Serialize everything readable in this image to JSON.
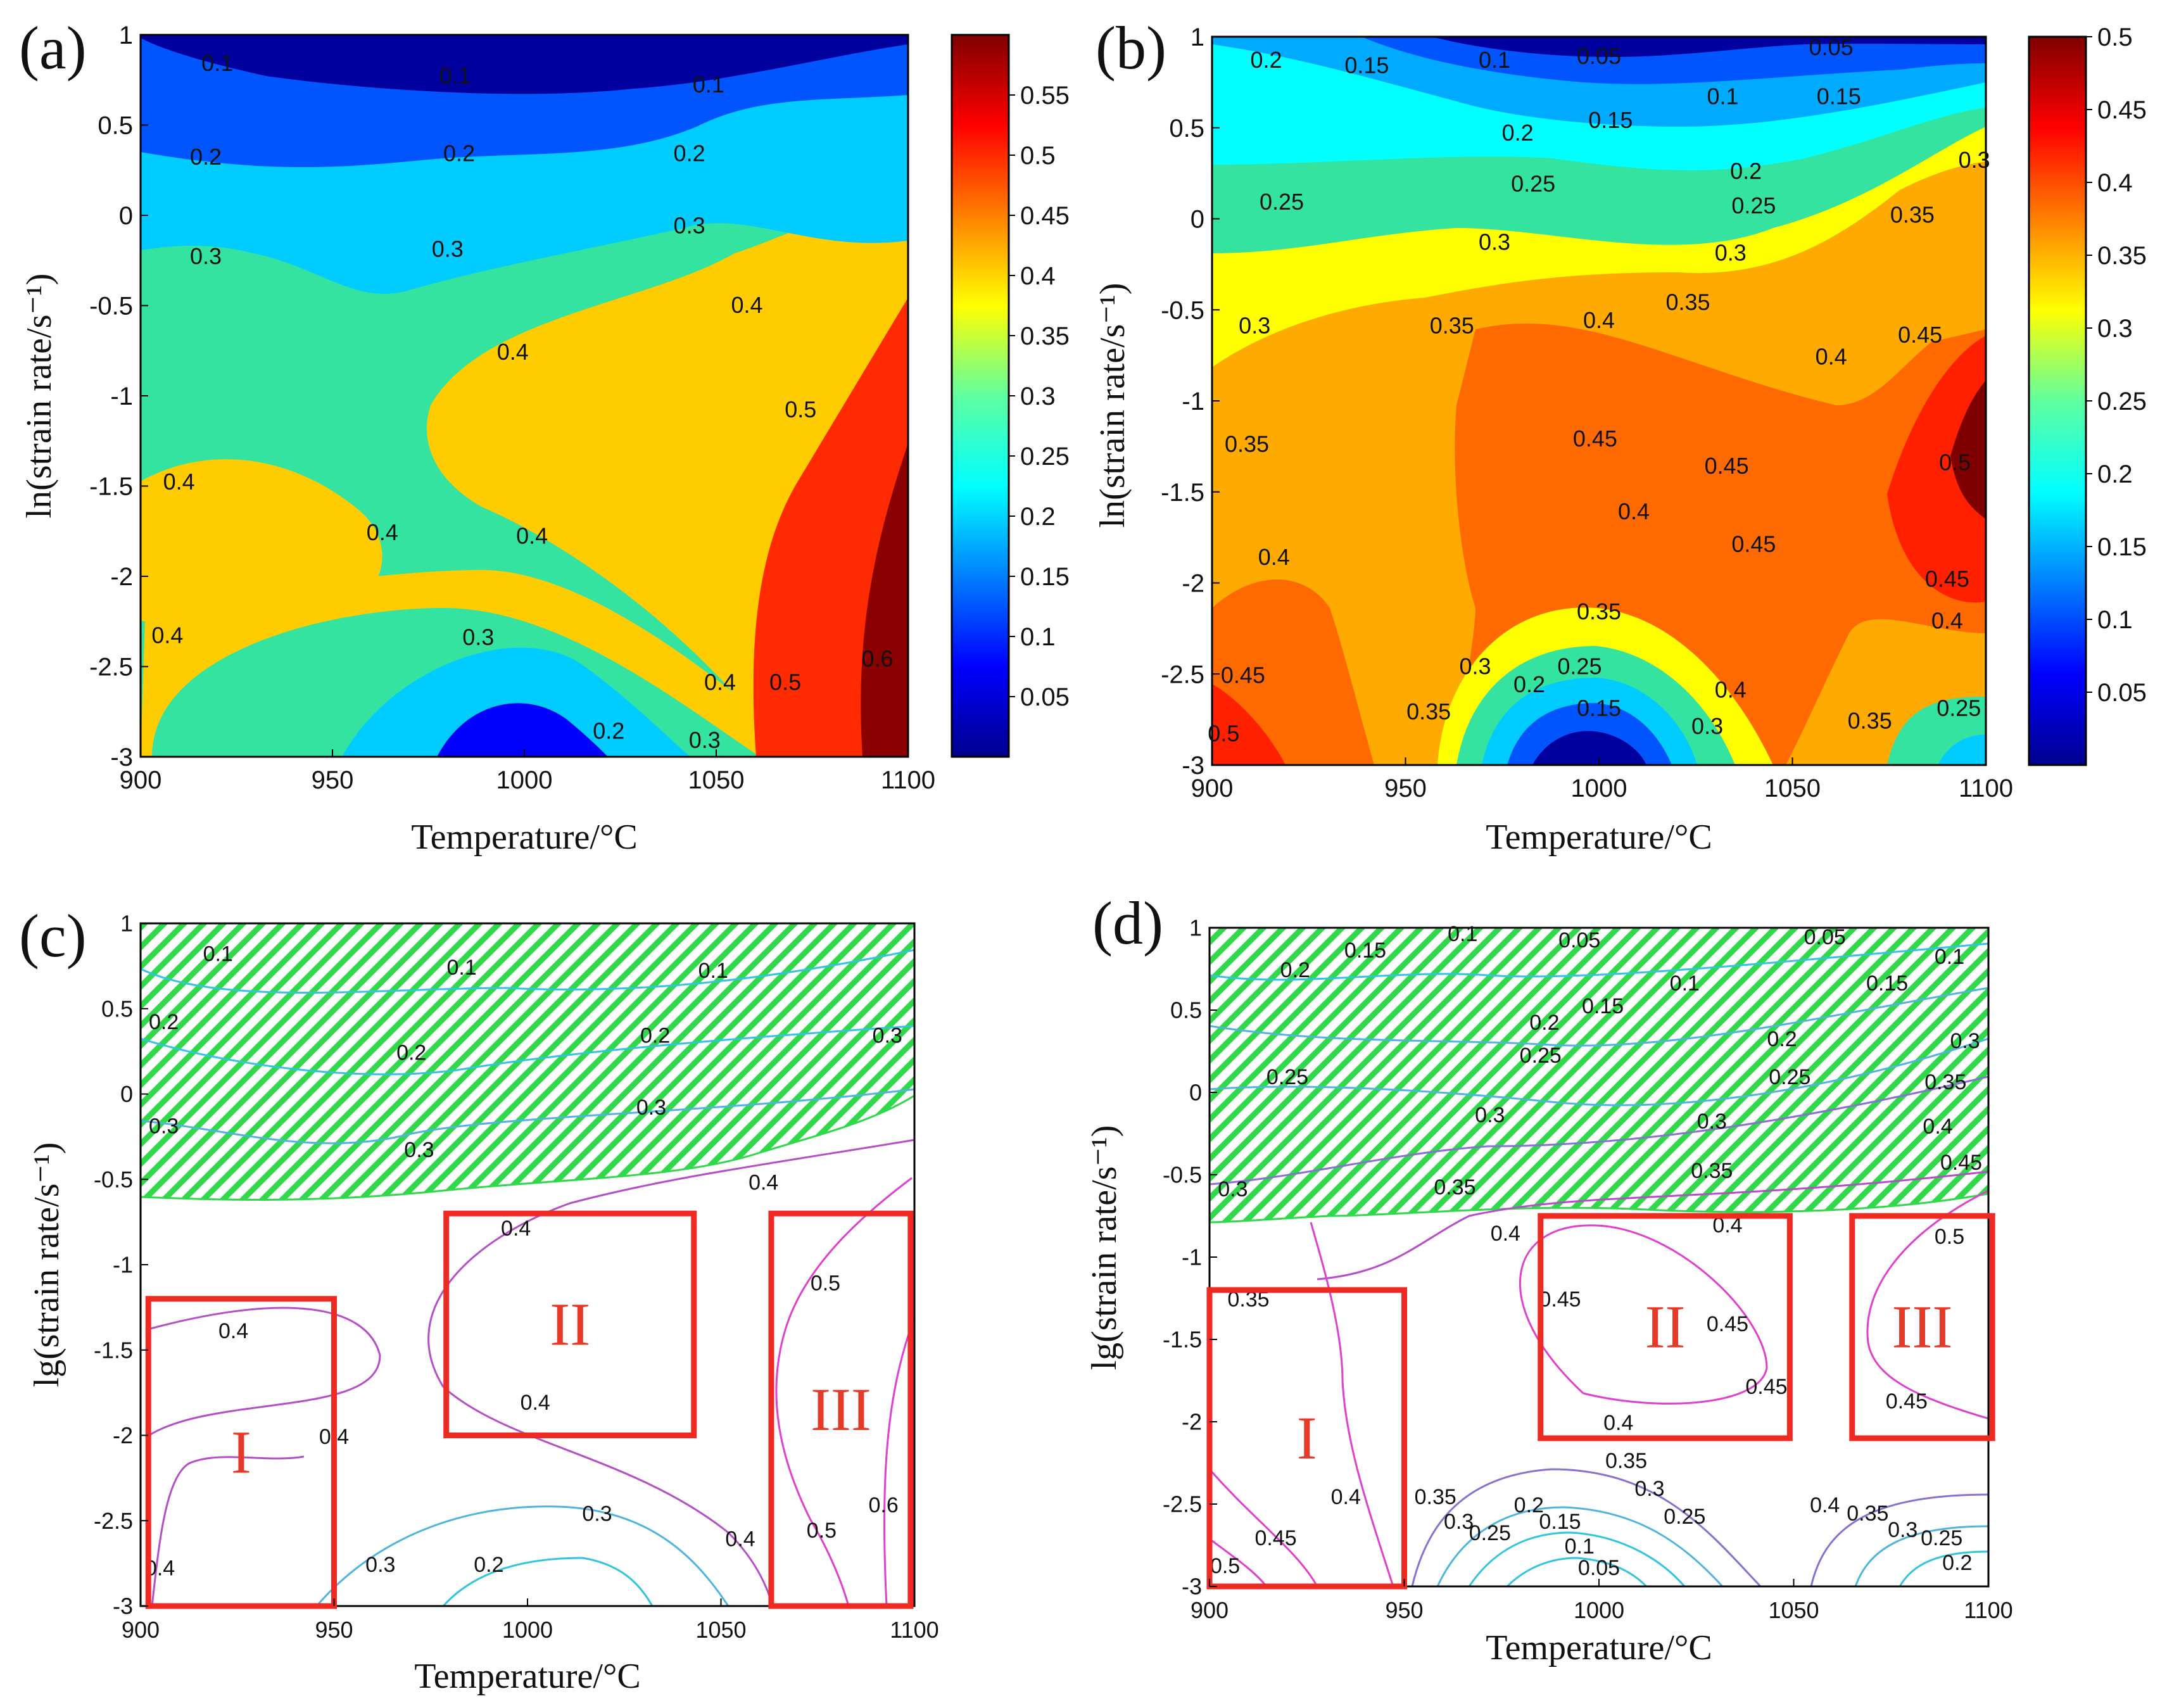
{
  "figure": {
    "panels": [
      {
        "id": "a",
        "letter": "(a)",
        "type": "filled-contour",
        "xlabel": "Temperature/°C",
        "ylabel": "ln(strain rate/s⁻¹)",
        "xlim": [
          900,
          1100
        ],
        "ylim": [
          -3,
          1
        ],
        "xticks": [
          "900",
          "950",
          "1000",
          "1050",
          "1100"
        ],
        "yticks": [
          "1",
          "0.5",
          "0",
          "-0.5",
          "-1",
          "-1.5",
          "-2",
          "-2.5",
          "-3"
        ],
        "colorbar": {
          "ticks": [
            "0.55",
            "0.5",
            "0.45",
            "0.4",
            "0.35",
            "0.3",
            "0.25",
            "0.2",
            "0.15",
            "0.1",
            "0.05"
          ],
          "range": [
            0,
            0.6
          ]
        },
        "contour_labels": [
          {
            "text": "0.1",
            "x": 920,
            "y": 0.8
          },
          {
            "text": "0.1",
            "x": 982,
            "y": 0.73
          },
          {
            "text": "0.1",
            "x": 1048,
            "y": 0.68
          },
          {
            "text": "0.2",
            "x": 917,
            "y": 0.28
          },
          {
            "text": "0.2",
            "x": 983,
            "y": 0.3
          },
          {
            "text": "0.2",
            "x": 1043,
            "y": 0.3
          },
          {
            "text": "0.3",
            "x": 917,
            "y": -0.27
          },
          {
            "text": "0.3",
            "x": 980,
            "y": -0.23
          },
          {
            "text": "0.3",
            "x": 1043,
            "y": -0.1
          },
          {
            "text": "0.4",
            "x": 1058,
            "y": -0.54
          },
          {
            "text": "0.4",
            "x": 997,
            "y": -0.8
          },
          {
            "text": "0.5",
            "x": 1072,
            "y": -1.12
          },
          {
            "text": "0.4",
            "x": 910,
            "y": -1.52
          },
          {
            "text": "0.4",
            "x": 963,
            "y": -1.8
          },
          {
            "text": "0.4",
            "x": 1002,
            "y": -1.82
          },
          {
            "text": "0.4",
            "x": 907,
            "y": -2.37
          },
          {
            "text": "0.3",
            "x": 988,
            "y": -2.38
          },
          {
            "text": "0.4",
            "x": 1051,
            "y": -2.63
          },
          {
            "text": "0.5",
            "x": 1068,
            "y": -2.63
          },
          {
            "text": "0.6",
            "x": 1092,
            "y": -2.5
          },
          {
            "text": "0.2",
            "x": 1022,
            "y": -2.9
          },
          {
            "text": "0.3",
            "x": 1047,
            "y": -2.95
          }
        ]
      },
      {
        "id": "b",
        "letter": "(b)",
        "type": "filled-contour",
        "xlabel": "Temperature/°C",
        "ylabel": "ln(strain rate/s⁻¹)",
        "xlim": [
          900,
          1100
        ],
        "ylim": [
          -3,
          1
        ],
        "xticks": [
          "900",
          "950",
          "1000",
          "1050",
          "1100"
        ],
        "yticks": [
          "1",
          "0.5",
          "0",
          "-0.5",
          "-1",
          "-1.5",
          "-2",
          "-2.5",
          "-3"
        ],
        "colorbar": {
          "ticks": [
            "0.5",
            "0.45",
            "0.4",
            "0.35",
            "0.3",
            "0.25",
            "0.2",
            "0.15",
            "0.1",
            "0.05"
          ],
          "range": [
            0,
            0.5
          ]
        },
        "contour_labels": [
          {
            "text": "0.2",
            "x": 914,
            "y": 0.83
          },
          {
            "text": "0.15",
            "x": 940,
            "y": 0.8
          },
          {
            "text": "0.1",
            "x": 973,
            "y": 0.83
          },
          {
            "text": "0.05",
            "x": 1000,
            "y": 0.85
          },
          {
            "text": "0.05",
            "x": 1060,
            "y": 0.9
          },
          {
            "text": "0.1",
            "x": 1032,
            "y": 0.63
          },
          {
            "text": "0.15",
            "x": 1062,
            "y": 0.63
          },
          {
            "text": "0.15",
            "x": 1003,
            "y": 0.5
          },
          {
            "text": "0.2",
            "x": 979,
            "y": 0.43
          },
          {
            "text": "0.2",
            "x": 1038,
            "y": 0.22
          },
          {
            "text": "0.25",
            "x": 918,
            "y": 0.05
          },
          {
            "text": "0.25",
            "x": 983,
            "y": 0.15
          },
          {
            "text": "0.25",
            "x": 1040,
            "y": 0.03
          },
          {
            "text": "0.3",
            "x": 1097,
            "y": 0.28
          },
          {
            "text": "0.3",
            "x": 973,
            "y": -0.17
          },
          {
            "text": "0.3",
            "x": 1034,
            "y": -0.23
          },
          {
            "text": "0.35",
            "x": 1081,
            "y": -0.02
          },
          {
            "text": "0.35",
            "x": 962,
            "y": -0.63
          },
          {
            "text": "0.35",
            "x": 1023,
            "y": -0.5
          },
          {
            "text": "0.4",
            "x": 1000,
            "y": -0.6
          },
          {
            "text": "0.4",
            "x": 1060,
            "y": -0.8
          },
          {
            "text": "0.45",
            "x": 1083,
            "y": -0.68
          },
          {
            "text": "0.3",
            "x": 911,
            "y": -0.63
          },
          {
            "text": "0.35",
            "x": 909,
            "y": -1.28
          },
          {
            "text": "0.45",
            "x": 999,
            "y": -1.25
          },
          {
            "text": "0.45",
            "x": 1033,
            "y": -1.4
          },
          {
            "text": "0.4",
            "x": 1009,
            "y": -1.65
          },
          {
            "text": "0.45",
            "x": 1040,
            "y": -1.83
          },
          {
            "text": "0.5",
            "x": 1092,
            "y": -1.38
          },
          {
            "text": "0.4",
            "x": 916,
            "y": -1.9
          },
          {
            "text": "0.45",
            "x": 1090,
            "y": -2.02
          },
          {
            "text": "0.4",
            "x": 1090,
            "y": -2.25
          },
          {
            "text": "0.35",
            "x": 1000,
            "y": -2.2
          },
          {
            "text": "0.3",
            "x": 1028,
            "y": -2.83
          },
          {
            "text": "0.4",
            "x": 1034,
            "y": -2.63
          },
          {
            "text": "0.25",
            "x": 995,
            "y": -2.5
          },
          {
            "text": "0.2",
            "x": 982,
            "y": -2.6
          },
          {
            "text": "0.15",
            "x": 1000,
            "y": -2.73
          },
          {
            "text": "0.3",
            "x": 968,
            "y": -2.5
          },
          {
            "text": "0.35",
            "x": 956,
            "y": -2.75
          },
          {
            "text": "0.35",
            "x": 1070,
            "y": -2.8
          },
          {
            "text": "0.25",
            "x": 1093,
            "y": -2.73
          },
          {
            "text": "0.45",
            "x": 908,
            "y": -2.55
          },
          {
            "text": "0.5",
            "x": 903,
            "y": -2.87
          }
        ]
      },
      {
        "id": "c",
        "letter": "(c)",
        "type": "processing-map",
        "xlabel": "Temperature/°C",
        "ylabel": "lg(strain rate/s⁻¹)",
        "xlim": [
          900,
          1100
        ],
        "ylim": [
          -3,
          1
        ],
        "xticks": [
          "900",
          "950",
          "1000",
          "1050",
          "1100"
        ],
        "yticks": [
          "1",
          "0.5",
          "0",
          "-0.5",
          "-1",
          "-1.5",
          "-2",
          "-2.5",
          "-3"
        ],
        "instability_region": "hatched",
        "regions": [
          {
            "label": "I",
            "x0": 902,
            "x1": 950,
            "y0": -3,
            "y1": -1.2
          },
          {
            "label": "II",
            "x0": 979,
            "x1": 1043,
            "y0": -2,
            "y1": -0.7
          },
          {
            "label": "III",
            "x0": 1063,
            "x1": 1099,
            "y0": -3,
            "y1": -0.7
          }
        ],
        "contour_labels": [
          {
            "text": "0.1",
            "x": 920,
            "y": 0.78
          },
          {
            "text": "0.1",
            "x": 983,
            "y": 0.7
          },
          {
            "text": "0.1",
            "x": 1048,
            "y": 0.68
          },
          {
            "text": "0.2",
            "x": 906,
            "y": 0.38
          },
          {
            "text": "0.2",
            "x": 970,
            "y": 0.2
          },
          {
            "text": "0.2",
            "x": 1033,
            "y": 0.3
          },
          {
            "text": "0.3",
            "x": 1093,
            "y": 0.3
          },
          {
            "text": "0.3",
            "x": 906,
            "y": -0.23
          },
          {
            "text": "0.3",
            "x": 972,
            "y": -0.37
          },
          {
            "text": "0.3",
            "x": 1032,
            "y": -0.12
          },
          {
            "text": "0.4",
            "x": 1061,
            "y": -0.56
          },
          {
            "text": "0.4",
            "x": 997,
            "y": -0.83
          },
          {
            "text": "0.5",
            "x": 1077,
            "y": -1.15
          },
          {
            "text": "0.4",
            "x": 924,
            "y": -1.43
          },
          {
            "text": "0.4",
            "x": 950,
            "y": -2.05
          },
          {
            "text": "0.4",
            "x": 1002,
            "y": -1.85
          },
          {
            "text": "0.4",
            "x": 905,
            "y": -2.82
          },
          {
            "text": "0.3",
            "x": 1018,
            "y": -2.5
          },
          {
            "text": "0.3",
            "x": 962,
            "y": -2.8
          },
          {
            "text": "0.2",
            "x": 990,
            "y": -2.8
          },
          {
            "text": "0.4",
            "x": 1055,
            "y": -2.65
          },
          {
            "text": "0.5",
            "x": 1076,
            "y": -2.6
          },
          {
            "text": "0.6",
            "x": 1092,
            "y": -2.45
          }
        ]
      },
      {
        "id": "d",
        "letter": "(d)",
        "type": "processing-map",
        "xlabel": "Temperature/°C",
        "ylabel": "lg(strain rate/s⁻¹)",
        "xlim": [
          900,
          1100
        ],
        "ylim": [
          -3,
          1
        ],
        "xticks": [
          "900",
          "950",
          "1000",
          "1050",
          "1100"
        ],
        "yticks": [
          "1",
          "0.5",
          "0",
          "-0.5",
          "-1",
          "-1.5",
          "-2",
          "-2.5",
          "-3"
        ],
        "instability_region": "hatched",
        "regions": [
          {
            "label": "I",
            "x0": 900,
            "x1": 950,
            "y0": -3,
            "y1": -1.2
          },
          {
            "label": "II",
            "x0": 985,
            "x1": 1049,
            "y0": -2.1,
            "y1": -0.75
          },
          {
            "label": "III",
            "x0": 1065,
            "x1": 1101,
            "y0": -2.1,
            "y1": -0.75
          }
        ],
        "contour_labels": [
          {
            "text": "0.2",
            "x": 922,
            "y": 0.7
          },
          {
            "text": "0.15",
            "x": 940,
            "y": 0.82
          },
          {
            "text": "0.1",
            "x": 965,
            "y": 0.92
          },
          {
            "text": "0.05",
            "x": 995,
            "y": 0.88
          },
          {
            "text": "0.05",
            "x": 1058,
            "y": 0.9
          },
          {
            "text": "0.1",
            "x": 1090,
            "y": 0.78
          },
          {
            "text": "0.15",
            "x": 1074,
            "y": 0.62
          },
          {
            "text": "0.1",
            "x": 1022,
            "y": 0.62
          },
          {
            "text": "0.15",
            "x": 1001,
            "y": 0.48
          },
          {
            "text": "0.2",
            "x": 986,
            "y": 0.38
          },
          {
            "text": "0.25",
            "x": 985,
            "y": 0.18
          },
          {
            "text": "0.2",
            "x": 1047,
            "y": 0.28
          },
          {
            "text": "0.3",
            "x": 1094,
            "y": 0.27
          },
          {
            "text": "0.25",
            "x": 920,
            "y": 0.05
          },
          {
            "text": "0.25",
            "x": 1049,
            "y": 0.05
          },
          {
            "text": "0.35",
            "x": 1089,
            "y": 0.02
          },
          {
            "text": "0.3",
            "x": 972,
            "y": -0.18
          },
          {
            "text": "0.3",
            "x": 1029,
            "y": -0.22
          },
          {
            "text": "0.4",
            "x": 1087,
            "y": -0.25
          },
          {
            "text": "0.45",
            "x": 1093,
            "y": -0.47
          },
          {
            "text": "0.35",
            "x": 1029,
            "y": -0.52
          },
          {
            "text": "0.3",
            "x": 906,
            "y": -0.63
          },
          {
            "text": "0.35",
            "x": 963,
            "y": -0.62
          },
          {
            "text": "0.4",
            "x": 1033,
            "y": -0.85
          },
          {
            "text": "0.4",
            "x": 976,
            "y": -0.9
          },
          {
            "text": "0.5",
            "x": 1090,
            "y": -0.92
          },
          {
            "text": "0.45",
            "x": 990,
            "y": -1.3
          },
          {
            "text": "0.45",
            "x": 1033,
            "y": -1.45
          },
          {
            "text": "0.45",
            "x": 1043,
            "y": -1.83
          },
          {
            "text": "0.45",
            "x": 1079,
            "y": -1.92
          },
          {
            "text": "0.35",
            "x": 910,
            "y": -1.3
          },
          {
            "text": "0.4",
            "x": 935,
            "y": -2.5
          },
          {
            "text": "0.45",
            "x": 917,
            "y": -2.75
          },
          {
            "text": "0.5",
            "x": 904,
            "y": -2.92
          },
          {
            "text": "0.4",
            "x": 1005,
            "y": -2.05
          },
          {
            "text": "0.35",
            "x": 1007,
            "y": -2.28
          },
          {
            "text": "0.3",
            "x": 1013,
            "y": -2.45
          },
          {
            "text": "0.25",
            "x": 1022,
            "y": -2.62
          },
          {
            "text": "0.35",
            "x": 958,
            "y": -2.5
          },
          {
            "text": "0.3",
            "x": 964,
            "y": -2.65
          },
          {
            "text": "0.25",
            "x": 972,
            "y": -2.72
          },
          {
            "text": "0.2",
            "x": 982,
            "y": -2.55
          },
          {
            "text": "0.15",
            "x": 990,
            "y": -2.65
          },
          {
            "text": "0.1",
            "x": 995,
            "y": -2.8
          },
          {
            "text": "0.05",
            "x": 1000,
            "y": -2.93
          },
          {
            "text": "0.4",
            "x": 1058,
            "y": -2.55
          },
          {
            "text": "0.35",
            "x": 1069,
            "y": -2.6
          },
          {
            "text": "0.3",
            "x": 1078,
            "y": -2.7
          },
          {
            "text": "0.25",
            "x": 1088,
            "y": -2.75
          },
          {
            "text": "0.2",
            "x": 1092,
            "y": -2.9
          }
        ]
      }
    ]
  }
}
